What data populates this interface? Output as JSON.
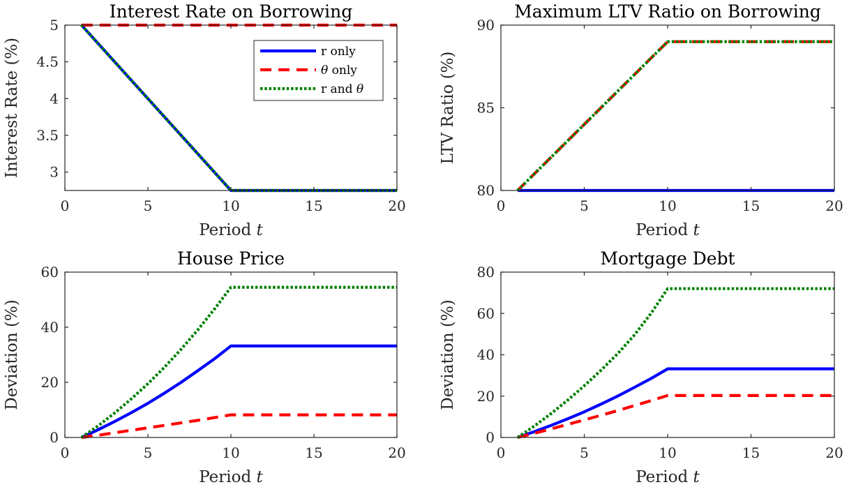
{
  "chart_data": [
    {
      "type": "line",
      "title": "Interest Rate on Borrowing",
      "xlabel": "Period t",
      "ylabel": "Interest Rate (%)",
      "xlim": [
        0,
        20
      ],
      "ylim": [
        2.75,
        5
      ],
      "xticks": [
        0,
        5,
        10,
        15,
        20
      ],
      "yticks": [
        3,
        3.5,
        4,
        4.5,
        5
      ],
      "ytick_labels": [
        "3",
        "3.5",
        "4",
        "4.5",
        "5"
      ],
      "legend": {
        "position": "top-right",
        "entries": [
          "r only",
          "θ only",
          "r and θ"
        ]
      },
      "series": [
        {
          "name": "r only",
          "color": "#0000ff",
          "style": "solid",
          "x": [
            1,
            10,
            20
          ],
          "y": [
            5,
            2.75,
            2.75
          ]
        },
        {
          "name": "θ only",
          "color": "#ff0000",
          "style": "dashed",
          "x": [
            1,
            20
          ],
          "y": [
            5,
            5
          ]
        },
        {
          "name": "r and θ",
          "color": "#008000",
          "style": "dotted",
          "x": [
            1,
            10,
            20
          ],
          "y": [
            5,
            2.75,
            2.75
          ]
        }
      ]
    },
    {
      "type": "line",
      "title": "Maximum LTV Ratio on Borrowing",
      "xlabel": "Period t",
      "ylabel": "LTV Ratio (%)",
      "xlim": [
        0,
        20
      ],
      "ylim": [
        80,
        90
      ],
      "xticks": [
        0,
        5,
        10,
        15,
        20
      ],
      "yticks": [
        80,
        85,
        90
      ],
      "ytick_labels": [
        "80",
        "85",
        "90"
      ],
      "series": [
        {
          "name": "r only",
          "color": "#0000ff",
          "style": "solid",
          "x": [
            1,
            20
          ],
          "y": [
            80,
            80
          ]
        },
        {
          "name": "θ only",
          "color": "#ff0000",
          "style": "dashed",
          "x": [
            1,
            10,
            20
          ],
          "y": [
            80,
            89,
            89
          ]
        },
        {
          "name": "r and θ",
          "color": "#008000",
          "style": "dotted",
          "x": [
            1,
            10,
            20
          ],
          "y": [
            80,
            89,
            89
          ]
        }
      ]
    },
    {
      "type": "line",
      "title": "House Price",
      "xlabel": "Period t",
      "ylabel": "Deviation (%)",
      "xlim": [
        0,
        20
      ],
      "ylim": [
        0,
        60
      ],
      "xticks": [
        0,
        5,
        10,
        15,
        20
      ],
      "yticks": [
        0,
        20,
        40,
        60
      ],
      "ytick_labels": [
        "0",
        "20",
        "40",
        "60"
      ],
      "series": [
        {
          "name": "r only",
          "color": "#0000ff",
          "style": "solid",
          "x": [
            1,
            2,
            3,
            4,
            5,
            6,
            7,
            8,
            9,
            10,
            20
          ],
          "y": [
            0,
            2.8,
            5.8,
            9.0,
            12.4,
            16.1,
            20.0,
            24.2,
            28.5,
            33.2,
            33.2
          ]
        },
        {
          "name": "θ only",
          "color": "#ff0000",
          "style": "dashed",
          "x": [
            1,
            2,
            3,
            4,
            5,
            6,
            7,
            8,
            9,
            10,
            20
          ],
          "y": [
            0,
            0.8,
            1.7,
            2.6,
            3.5,
            4.4,
            5.3,
            6.2,
            7.2,
            8.2,
            8.2
          ]
        },
        {
          "name": "r and θ",
          "color": "#008000",
          "style": "dotted",
          "x": [
            1,
            2,
            3,
            4,
            5,
            6,
            7,
            8,
            9,
            10,
            20
          ],
          "y": [
            0,
            4.2,
            8.9,
            14.0,
            19.5,
            25.5,
            32.0,
            39.0,
            46.5,
            54.5,
            54.5
          ]
        }
      ]
    },
    {
      "type": "line",
      "title": "Mortgage Debt",
      "xlabel": "Period t",
      "ylabel": "Deviation (%)",
      "xlim": [
        0,
        20
      ],
      "ylim": [
        0,
        80
      ],
      "xticks": [
        0,
        5,
        10,
        15,
        20
      ],
      "yticks": [
        0,
        20,
        40,
        60,
        80
      ],
      "ytick_labels": [
        "0",
        "20",
        "40",
        "60",
        "80"
      ],
      "series": [
        {
          "name": "r only",
          "color": "#0000ff",
          "style": "solid",
          "x": [
            1,
            2,
            3,
            4,
            5,
            6,
            7,
            8,
            9,
            10,
            20
          ],
          "y": [
            0,
            2.8,
            5.8,
            9.0,
            12.4,
            16.1,
            20.0,
            24.2,
            28.5,
            33.2,
            33.2
          ]
        },
        {
          "name": "θ only",
          "color": "#ff0000",
          "style": "dashed",
          "x": [
            1,
            2,
            3,
            4,
            5,
            6,
            7,
            8,
            9,
            10,
            20
          ],
          "y": [
            0,
            2.0,
            4.1,
            6.3,
            8.5,
            10.7,
            13.0,
            15.4,
            17.8,
            20.3,
            20.3
          ]
        },
        {
          "name": "r and θ",
          "color": "#008000",
          "style": "dotted",
          "x": [
            1,
            2,
            3,
            4,
            5,
            6,
            7,
            8,
            9,
            10,
            20
          ],
          "y": [
            0,
            5.5,
            11.5,
            18.0,
            25.0,
            32.5,
            40.5,
            49.5,
            60.0,
            72.0,
            72.0
          ]
        }
      ]
    }
  ]
}
